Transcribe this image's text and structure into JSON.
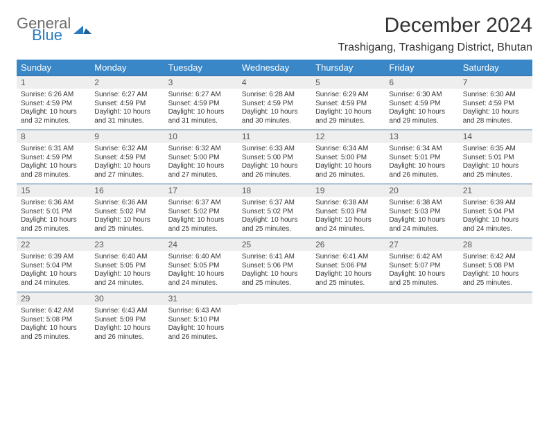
{
  "logo": {
    "wordTop": "General",
    "wordBottom": "Blue",
    "grayColor": "#6b6b6b",
    "blueColor": "#2a7ac0"
  },
  "title": "December 2024",
  "subtitle": "Trashigang, Trashigang District, Bhutan",
  "colors": {
    "headerBg": "#3a87c8",
    "weekBorder": "#356a9a",
    "dayNumBg": "#eeeeee",
    "text": "#333333"
  },
  "dayHeaders": [
    "Sunday",
    "Monday",
    "Tuesday",
    "Wednesday",
    "Thursday",
    "Friday",
    "Saturday"
  ],
  "weeks": [
    [
      {
        "n": "1",
        "sr": "6:26 AM",
        "ss": "4:59 PM",
        "dl": "10 hours and 32 minutes."
      },
      {
        "n": "2",
        "sr": "6:27 AM",
        "ss": "4:59 PM",
        "dl": "10 hours and 31 minutes."
      },
      {
        "n": "3",
        "sr": "6:27 AM",
        "ss": "4:59 PM",
        "dl": "10 hours and 31 minutes."
      },
      {
        "n": "4",
        "sr": "6:28 AM",
        "ss": "4:59 PM",
        "dl": "10 hours and 30 minutes."
      },
      {
        "n": "5",
        "sr": "6:29 AM",
        "ss": "4:59 PM",
        "dl": "10 hours and 29 minutes."
      },
      {
        "n": "6",
        "sr": "6:30 AM",
        "ss": "4:59 PM",
        "dl": "10 hours and 29 minutes."
      },
      {
        "n": "7",
        "sr": "6:30 AM",
        "ss": "4:59 PM",
        "dl": "10 hours and 28 minutes."
      }
    ],
    [
      {
        "n": "8",
        "sr": "6:31 AM",
        "ss": "4:59 PM",
        "dl": "10 hours and 28 minutes."
      },
      {
        "n": "9",
        "sr": "6:32 AM",
        "ss": "4:59 PM",
        "dl": "10 hours and 27 minutes."
      },
      {
        "n": "10",
        "sr": "6:32 AM",
        "ss": "5:00 PM",
        "dl": "10 hours and 27 minutes."
      },
      {
        "n": "11",
        "sr": "6:33 AM",
        "ss": "5:00 PM",
        "dl": "10 hours and 26 minutes."
      },
      {
        "n": "12",
        "sr": "6:34 AM",
        "ss": "5:00 PM",
        "dl": "10 hours and 26 minutes."
      },
      {
        "n": "13",
        "sr": "6:34 AM",
        "ss": "5:01 PM",
        "dl": "10 hours and 26 minutes."
      },
      {
        "n": "14",
        "sr": "6:35 AM",
        "ss": "5:01 PM",
        "dl": "10 hours and 25 minutes."
      }
    ],
    [
      {
        "n": "15",
        "sr": "6:36 AM",
        "ss": "5:01 PM",
        "dl": "10 hours and 25 minutes."
      },
      {
        "n": "16",
        "sr": "6:36 AM",
        "ss": "5:02 PM",
        "dl": "10 hours and 25 minutes."
      },
      {
        "n": "17",
        "sr": "6:37 AM",
        "ss": "5:02 PM",
        "dl": "10 hours and 25 minutes."
      },
      {
        "n": "18",
        "sr": "6:37 AM",
        "ss": "5:02 PM",
        "dl": "10 hours and 25 minutes."
      },
      {
        "n": "19",
        "sr": "6:38 AM",
        "ss": "5:03 PM",
        "dl": "10 hours and 24 minutes."
      },
      {
        "n": "20",
        "sr": "6:38 AM",
        "ss": "5:03 PM",
        "dl": "10 hours and 24 minutes."
      },
      {
        "n": "21",
        "sr": "6:39 AM",
        "ss": "5:04 PM",
        "dl": "10 hours and 24 minutes."
      }
    ],
    [
      {
        "n": "22",
        "sr": "6:39 AM",
        "ss": "5:04 PM",
        "dl": "10 hours and 24 minutes."
      },
      {
        "n": "23",
        "sr": "6:40 AM",
        "ss": "5:05 PM",
        "dl": "10 hours and 24 minutes."
      },
      {
        "n": "24",
        "sr": "6:40 AM",
        "ss": "5:05 PM",
        "dl": "10 hours and 24 minutes."
      },
      {
        "n": "25",
        "sr": "6:41 AM",
        "ss": "5:06 PM",
        "dl": "10 hours and 25 minutes."
      },
      {
        "n": "26",
        "sr": "6:41 AM",
        "ss": "5:06 PM",
        "dl": "10 hours and 25 minutes."
      },
      {
        "n": "27",
        "sr": "6:42 AM",
        "ss": "5:07 PM",
        "dl": "10 hours and 25 minutes."
      },
      {
        "n": "28",
        "sr": "6:42 AM",
        "ss": "5:08 PM",
        "dl": "10 hours and 25 minutes."
      }
    ],
    [
      {
        "n": "29",
        "sr": "6:42 AM",
        "ss": "5:08 PM",
        "dl": "10 hours and 25 minutes."
      },
      {
        "n": "30",
        "sr": "6:43 AM",
        "ss": "5:09 PM",
        "dl": "10 hours and 26 minutes."
      },
      {
        "n": "31",
        "sr": "6:43 AM",
        "ss": "5:10 PM",
        "dl": "10 hours and 26 minutes."
      },
      null,
      null,
      null,
      null
    ]
  ],
  "labels": {
    "sunrise": "Sunrise: ",
    "sunset": "Sunset: ",
    "daylight": "Daylight: "
  }
}
